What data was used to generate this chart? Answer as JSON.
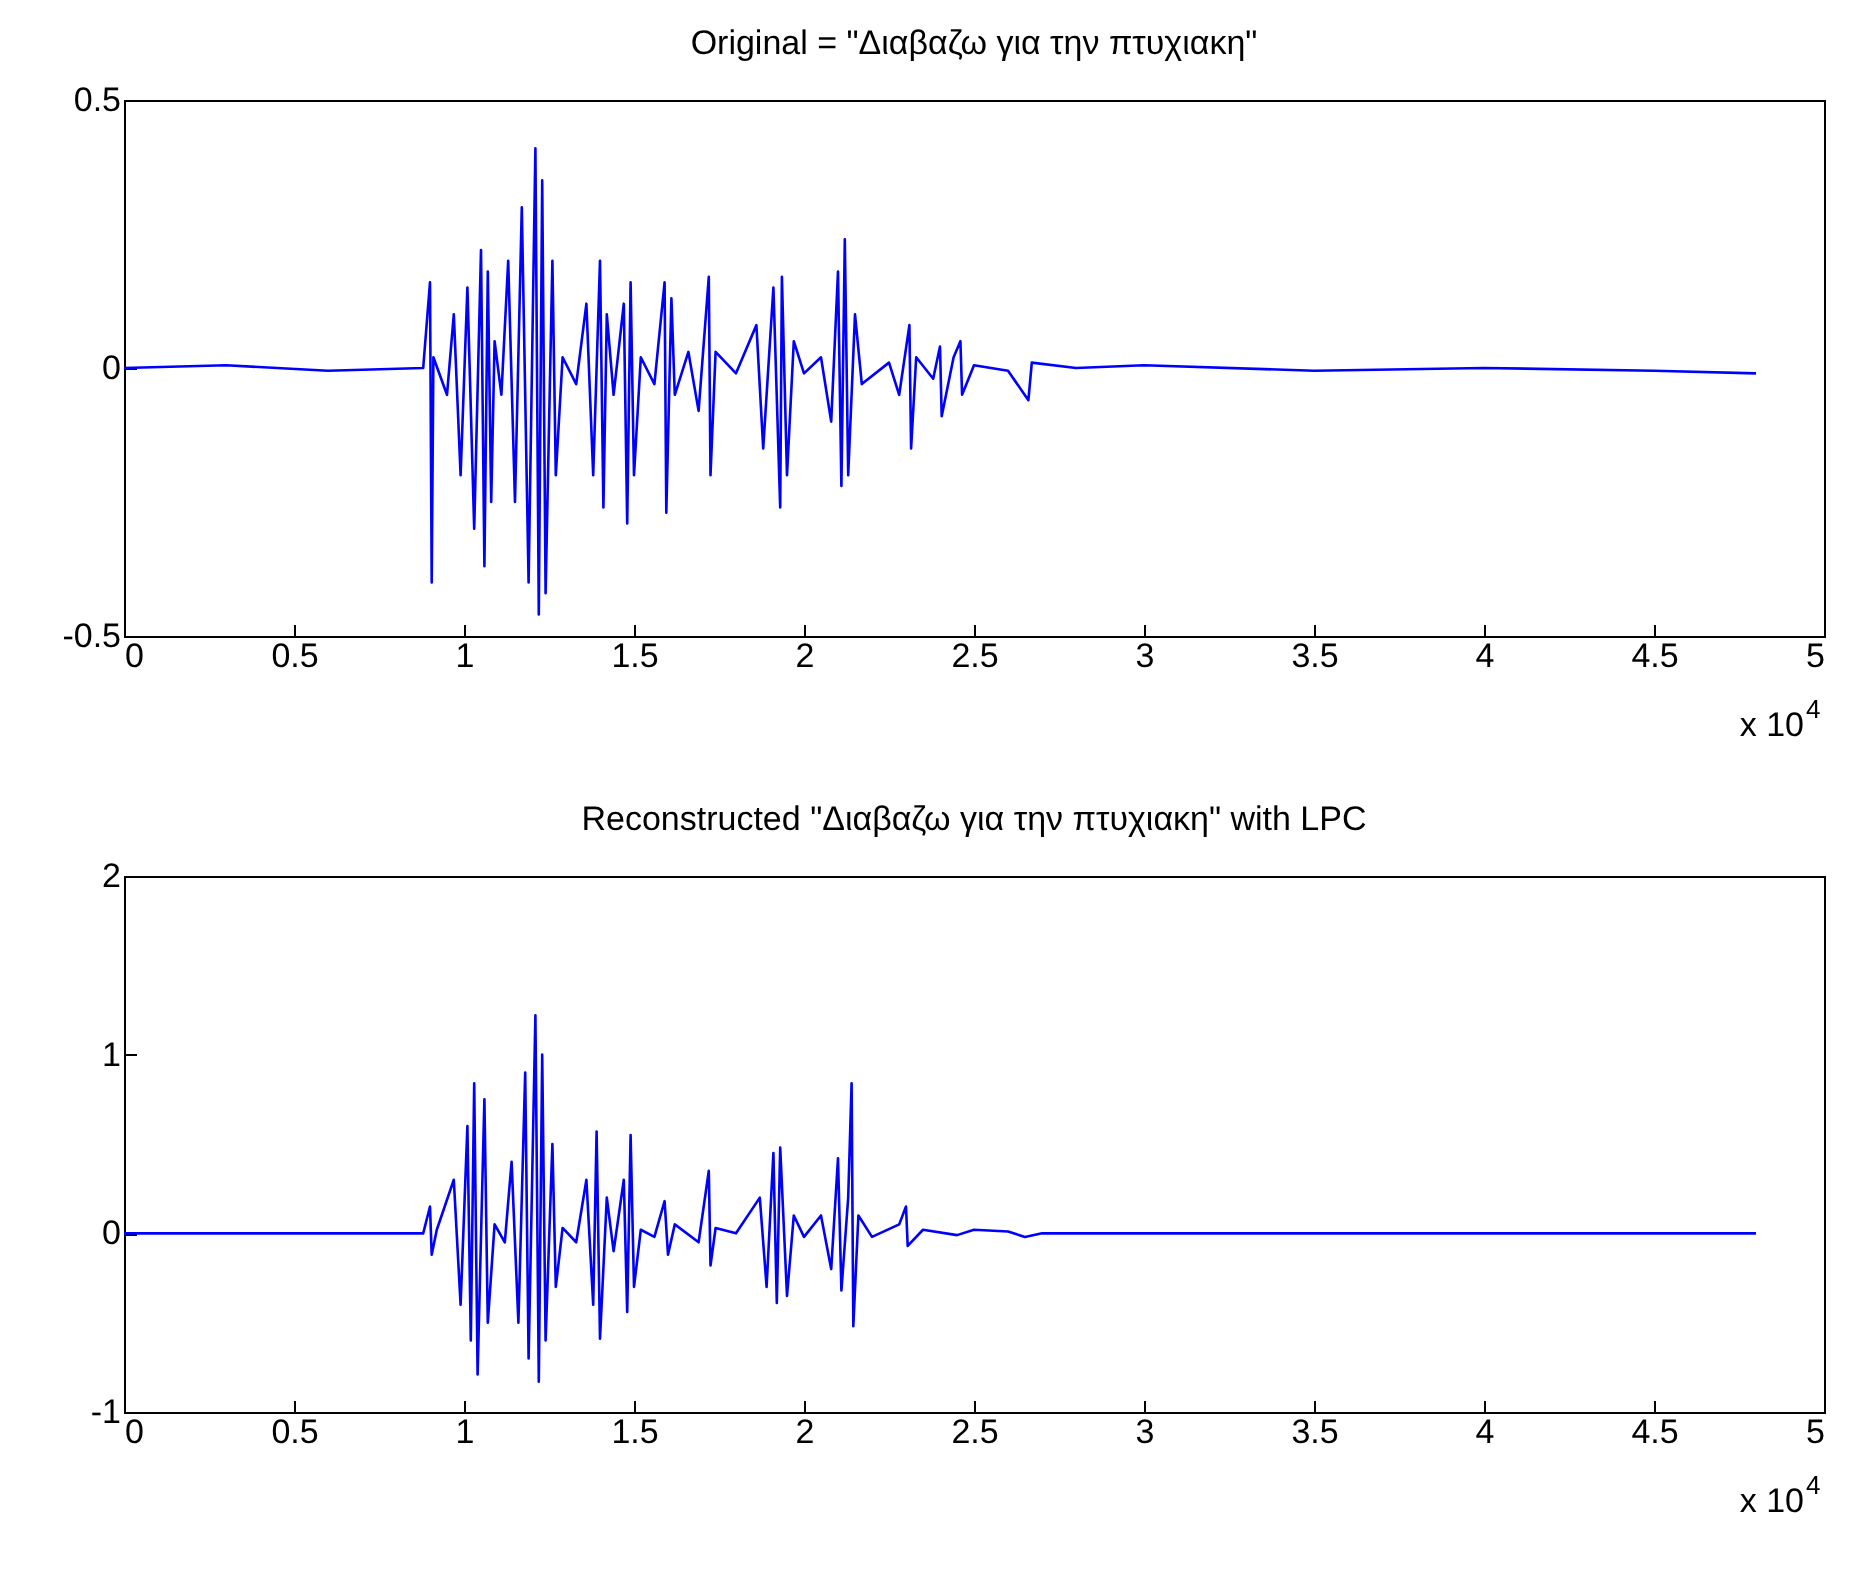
{
  "chart_data": [
    {
      "type": "line",
      "title": "Original = \"Διαβαζω για την πτυχιακη\"",
      "color": "#0000ff",
      "grid": false,
      "xlim": [
        0,
        5
      ],
      "xticks": [
        0,
        0.5,
        1,
        1.5,
        2,
        2.5,
        3,
        3.5,
        4,
        4.5,
        5
      ],
      "ylim": [
        -0.5,
        0.5
      ],
      "yticks": [
        -0.5,
        0,
        0.5
      ],
      "annotations": [
        "x 10$^{4}$"
      ],
      "x": [
        0,
        0.3,
        0.6,
        0.88,
        0.9,
        0.905,
        0.91,
        0.95,
        0.97,
        0.99,
        1.01,
        1.03,
        1.05,
        1.06,
        1.07,
        1.08,
        1.09,
        1.11,
        1.13,
        1.15,
        1.17,
        1.19,
        1.21,
        1.22,
        1.23,
        1.24,
        1.26,
        1.27,
        1.29,
        1.33,
        1.36,
        1.38,
        1.4,
        1.41,
        1.42,
        1.44,
        1.47,
        1.48,
        1.49,
        1.5,
        1.52,
        1.56,
        1.59,
        1.595,
        1.61,
        1.62,
        1.66,
        1.69,
        1.72,
        1.725,
        1.74,
        1.8,
        1.86,
        1.88,
        1.91,
        1.93,
        1.935,
        1.95,
        1.97,
        2.0,
        2.05,
        2.08,
        2.1,
        2.11,
        2.12,
        2.13,
        2.15,
        2.17,
        2.25,
        2.28,
        2.31,
        2.315,
        2.33,
        2.38,
        2.4,
        2.405,
        2.44,
        2.46,
        2.465,
        2.5,
        2.6,
        2.66,
        2.67,
        2.8,
        3.0,
        3.5,
        4.0,
        4.5,
        4.8
      ],
      "values": [
        0,
        0.005,
        -0.005,
        0,
        0.16,
        -0.4,
        0.02,
        -0.05,
        0.1,
        -0.2,
        0.15,
        -0.3,
        0.22,
        -0.37,
        0.18,
        -0.25,
        0.05,
        -0.05,
        0.2,
        -0.25,
        0.3,
        -0.4,
        0.41,
        -0.46,
        0.35,
        -0.42,
        0.2,
        -0.2,
        0.02,
        -0.03,
        0.12,
        -0.2,
        0.2,
        -0.26,
        0.1,
        -0.05,
        0.12,
        -0.29,
        0.16,
        -0.2,
        0.02,
        -0.03,
        0.16,
        -0.27,
        0.13,
        -0.05,
        0.03,
        -0.08,
        0.17,
        -0.2,
        0.03,
        -0.01,
        0.08,
        -0.15,
        0.15,
        -0.26,
        0.17,
        -0.2,
        0.05,
        -0.01,
        0.02,
        -0.1,
        0.18,
        -0.22,
        0.24,
        -0.2,
        0.1,
        -0.03,
        0.01,
        -0.05,
        0.08,
        -0.15,
        0.02,
        -0.02,
        0.04,
        -0.09,
        0.02,
        0.05,
        -0.05,
        0.005,
        -0.005,
        -0.06,
        0.01,
        0,
        0.005,
        -0.005,
        0,
        -0.005,
        -0.01
      ]
    },
    {
      "type": "line",
      "title": "Reconstructed \"Διαβαζω για την πτυχιακη\" with LPC",
      "color": "#0000ff",
      "grid": false,
      "xlim": [
        0,
        5
      ],
      "xticks": [
        0,
        0.5,
        1,
        1.5,
        2,
        2.5,
        3,
        3.5,
        4,
        4.5,
        5
      ],
      "ylim": [
        -1,
        2
      ],
      "yticks": [
        -1,
        0,
        1,
        2
      ],
      "annotations": [
        "x 10$^{4}$"
      ],
      "x": [
        0,
        0.5,
        0.88,
        0.9,
        0.905,
        0.92,
        0.97,
        0.99,
        1.01,
        1.02,
        1.03,
        1.04,
        1.06,
        1.07,
        1.09,
        1.12,
        1.14,
        1.16,
        1.18,
        1.19,
        1.21,
        1.22,
        1.23,
        1.24,
        1.26,
        1.27,
        1.29,
        1.33,
        1.36,
        1.38,
        1.39,
        1.4,
        1.42,
        1.44,
        1.47,
        1.48,
        1.49,
        1.5,
        1.52,
        1.56,
        1.59,
        1.6,
        1.62,
        1.69,
        1.72,
        1.725,
        1.74,
        1.8,
        1.87,
        1.89,
        1.91,
        1.92,
        1.93,
        1.95,
        1.97,
        2.0,
        2.05,
        2.08,
        2.1,
        2.11,
        2.13,
        2.14,
        2.145,
        2.16,
        2.2,
        2.28,
        2.3,
        2.305,
        2.35,
        2.45,
        2.5,
        2.6,
        2.65,
        2.7,
        3.5,
        4.8
      ],
      "values": [
        0,
        0,
        0,
        0.15,
        -0.12,
        0.02,
        0.3,
        -0.4,
        0.6,
        -0.6,
        0.84,
        -0.79,
        0.75,
        -0.5,
        0.05,
        -0.05,
        0.4,
        -0.5,
        0.9,
        -0.7,
        1.22,
        -0.83,
        1.0,
        -0.6,
        0.5,
        -0.3,
        0.03,
        -0.05,
        0.3,
        -0.4,
        0.57,
        -0.59,
        0.2,
        -0.1,
        0.3,
        -0.44,
        0.55,
        -0.3,
        0.02,
        -0.02,
        0.18,
        -0.12,
        0.05,
        -0.05,
        0.35,
        -0.18,
        0.03,
        0,
        0.2,
        -0.3,
        0.45,
        -0.39,
        0.48,
        -0.35,
        0.1,
        -0.02,
        0.1,
        -0.2,
        0.42,
        -0.32,
        0.2,
        0.84,
        -0.52,
        0.1,
        -0.02,
        0.05,
        0.15,
        -0.07,
        0.02,
        -0.01,
        0.02,
        0.01,
        -0.02,
        0,
        0,
        0
      ]
    }
  ]
}
